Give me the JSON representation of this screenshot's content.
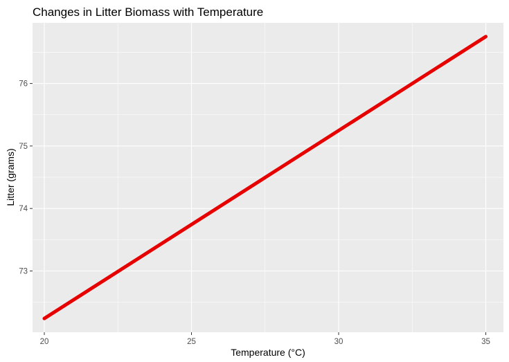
{
  "chart_data": {
    "type": "line",
    "title": "Changes in Litter Biomass with Temperature",
    "xlabel": "Temperature (°C)",
    "ylabel": "Litter (grams)",
    "xlim": [
      19.6,
      35.6
    ],
    "ylim": [
      72.02,
      76.97
    ],
    "x_ticks": [
      20,
      25,
      30,
      35
    ],
    "x_tick_labels": [
      "20",
      "25",
      "30",
      "35"
    ],
    "y_ticks": [
      73,
      74,
      75,
      76
    ],
    "y_tick_labels": [
      "73",
      "74",
      "75",
      "76"
    ],
    "grid": true,
    "series": [
      {
        "color": "#e60000",
        "x": [
          20,
          35
        ],
        "y": [
          72.24,
          76.75
        ]
      }
    ],
    "colors": {
      "panel": "#ebebeb",
      "grid": "#ffffff",
      "tick": "#333333"
    }
  }
}
